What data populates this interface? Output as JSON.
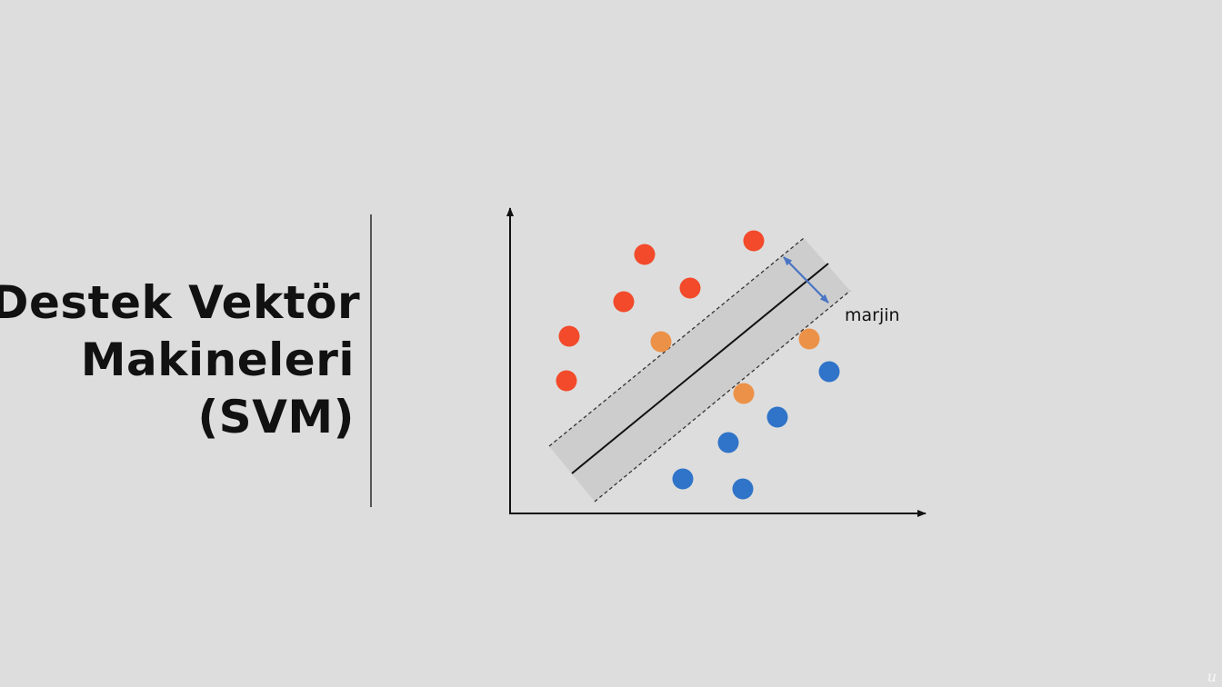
{
  "slide": {
    "title_lines": [
      "Destek Vektör",
      "Makineleri",
      "(SVM)"
    ],
    "background": "#dddddd"
  },
  "diagram": {
    "margin_label": "marjin",
    "colors": {
      "class_a": "#f24a2a",
      "class_b": "#2f74c8",
      "support_vector": "#ec9148",
      "margin_band": "#cdcdcd",
      "margin_arrow": "#4a74c4",
      "axis": "#111111"
    },
    "points": [
      {
        "class": "a"
      },
      {
        "class": "a"
      },
      {
        "class": "a"
      },
      {
        "class": "a"
      },
      {
        "class": "a"
      },
      {
        "class": "a"
      },
      {
        "class": "a"
      },
      {
        "class": "sv"
      },
      {
        "class": "sv"
      },
      {
        "class": "sv"
      },
      {
        "class": "b"
      },
      {
        "class": "b"
      },
      {
        "class": "b"
      },
      {
        "class": "b"
      },
      {
        "class": "b"
      }
    ]
  },
  "watermark": "u"
}
